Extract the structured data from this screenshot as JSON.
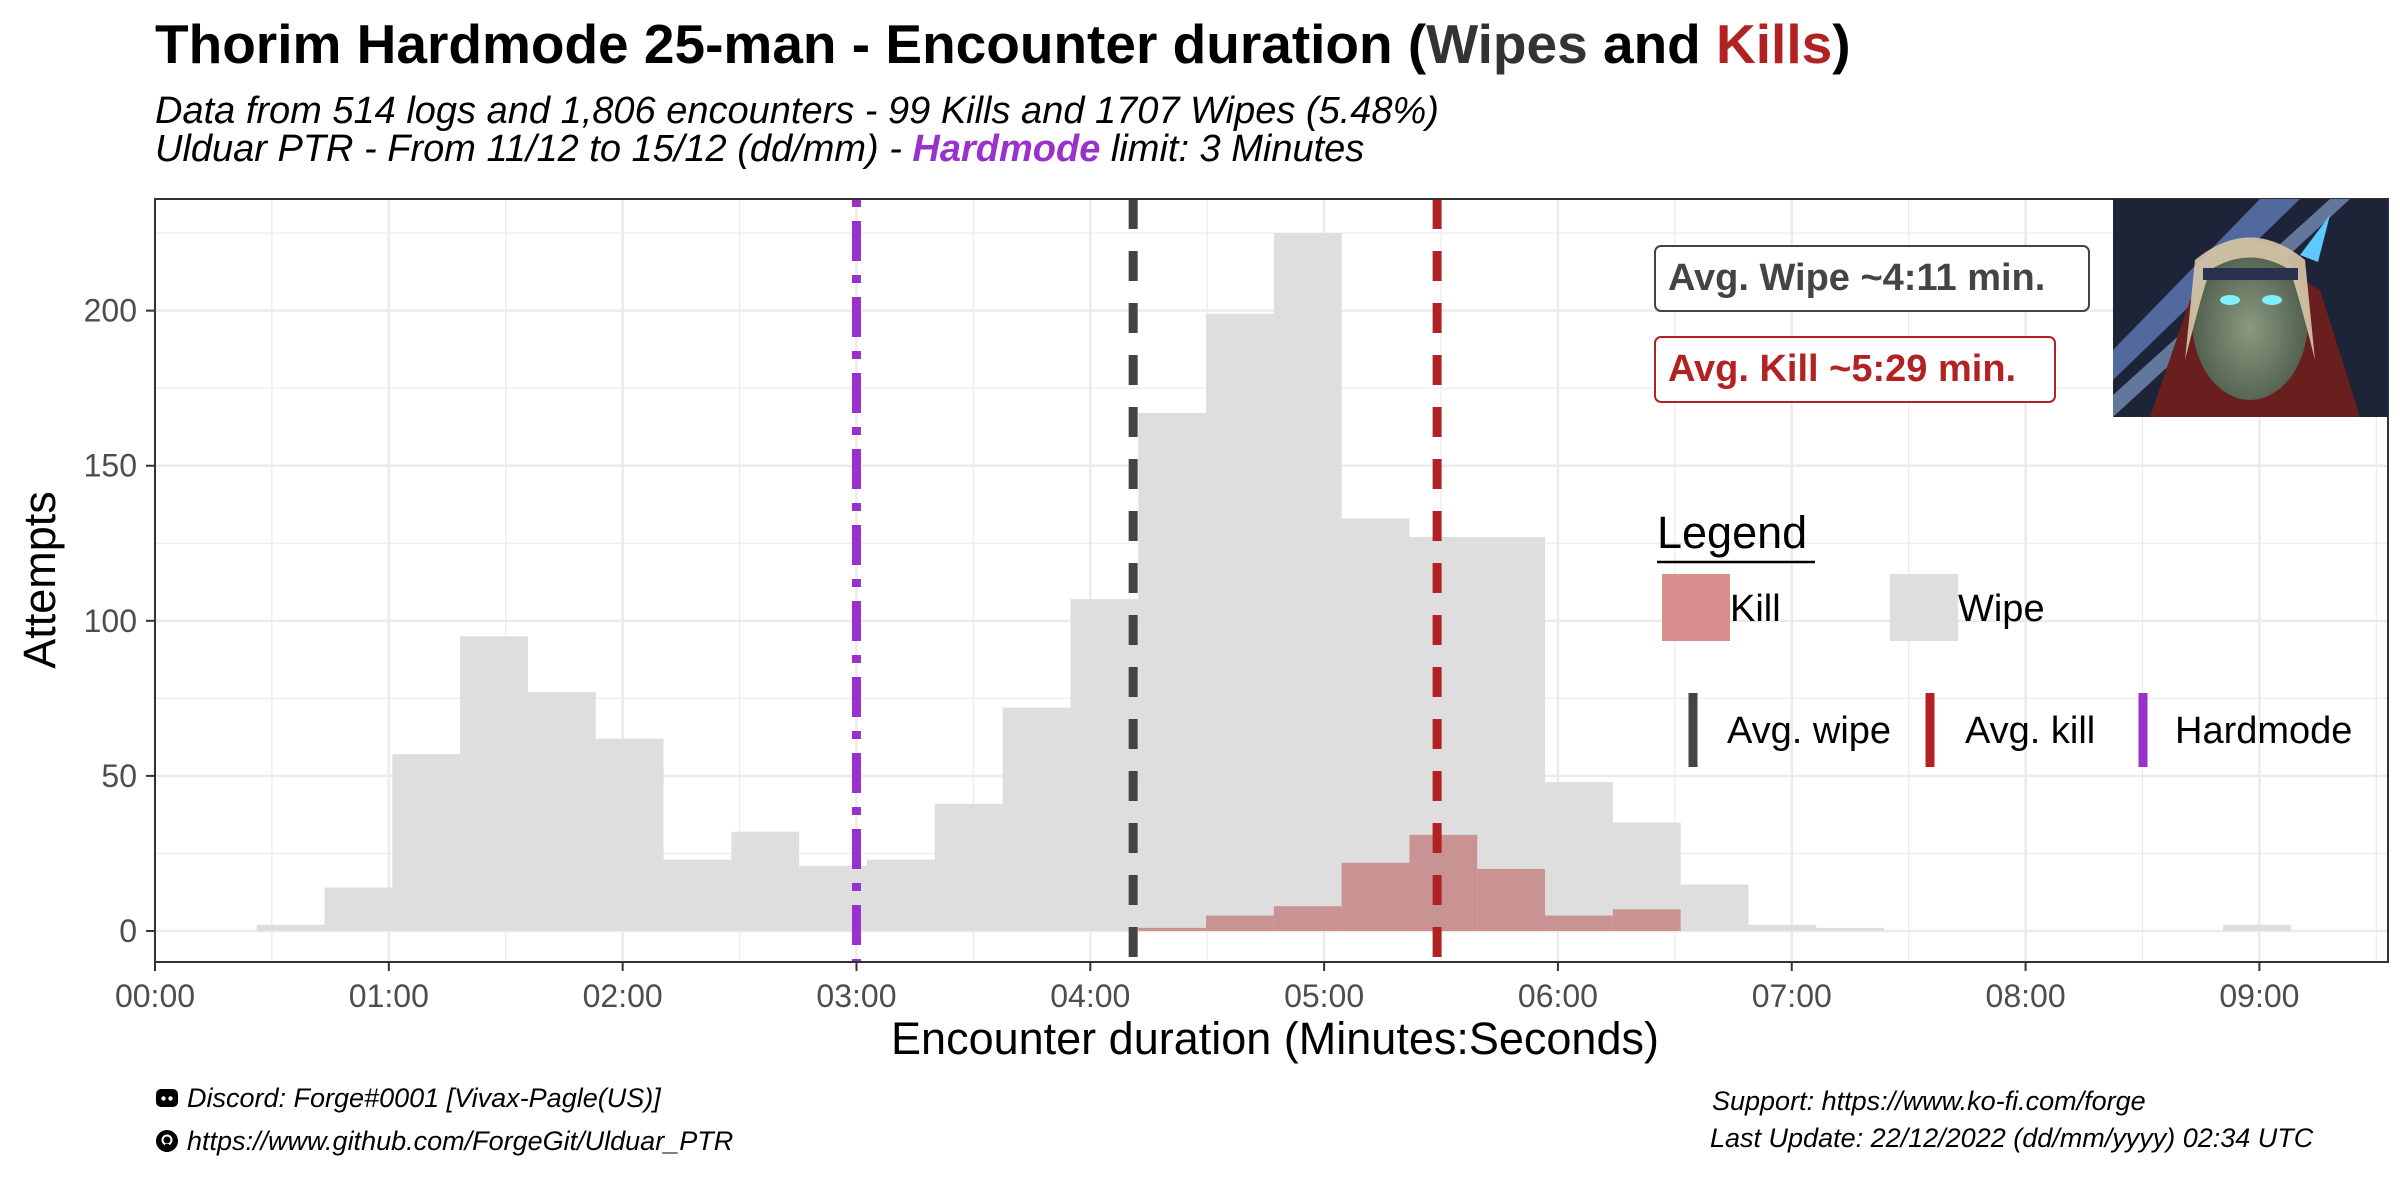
{
  "title": {
    "prefix": "Thorim Hardmode 25-man - Encounter duration (",
    "wipes_word": "Wipes",
    "and_word": " and ",
    "kills_word": "Kills",
    "suffix": ")"
  },
  "subtitle": {
    "line1": "Data from 514 logs and 1,806 encounters - 99 Kills and 1707 Wipes (5.48%)",
    "line2_prefix": "Ulduar PTR - From 11/12 to 15/12 (dd/mm) - ",
    "line2_hardmode": "Hardmode",
    "line2_suffix": " limit: 3 Minutes"
  },
  "annotations": {
    "avg_wipe": "Avg. Wipe ~4:11 min.",
    "avg_kill": "Avg. Kill ~5:29 min."
  },
  "legend": {
    "title": "Legend",
    "kill": "Kill",
    "wipe": "Wipe",
    "avg_wipe": "Avg. wipe",
    "avg_kill": "Avg. kill",
    "hardmode": "Hardmode"
  },
  "colors": {
    "wipe_fill": "#dedede",
    "kill_fill": "#c48080",
    "kill_legend": "#d98e8e",
    "avg_wipe_line": "#444444",
    "avg_kill_line": "#b22222",
    "hardmode_line": "#9932cc",
    "grid": "#ebebeb"
  },
  "footer": {
    "discord": "Discord: Forge#0001 [Vivax-Pagle(US)]",
    "github": "https://www.github.com/ForgeGit/Ulduar_PTR",
    "support": "Support: https://www.ko-fi.com/forge",
    "last_update": "Last Update: 22/12/2022 (dd/mm/yyyy) 02:34 UTC"
  },
  "icons": [
    "discord-icon",
    "github-icon",
    "boss-portrait"
  ],
  "chart_data": {
    "type": "bar",
    "xlabel": "Encounter duration (Minutes:Seconds)",
    "ylabel": "Attempts",
    "xlim_seconds": [
      0,
      573
    ],
    "ylim": [
      -10,
      236
    ],
    "x_ticks": [
      "00:00",
      "01:00",
      "02:00",
      "03:00",
      "04:00",
      "05:00",
      "06:00",
      "07:00",
      "08:00",
      "09:00"
    ],
    "y_ticks": [
      0,
      50,
      100,
      150,
      200
    ],
    "bin_width_seconds": 17.4,
    "wipe_bins": [
      {
        "x_start": 26.1,
        "count": 2
      },
      {
        "x_start": 43.5,
        "count": 14
      },
      {
        "x_start": 60.9,
        "count": 57
      },
      {
        "x_start": 78.3,
        "count": 95
      },
      {
        "x_start": 95.7,
        "count": 77
      },
      {
        "x_start": 113.1,
        "count": 62
      },
      {
        "x_start": 130.5,
        "count": 23
      },
      {
        "x_start": 147.9,
        "count": 32
      },
      {
        "x_start": 165.3,
        "count": 21
      },
      {
        "x_start": 182.7,
        "count": 23
      },
      {
        "x_start": 200.1,
        "count": 41
      },
      {
        "x_start": 217.5,
        "count": 72
      },
      {
        "x_start": 234.9,
        "count": 107
      },
      {
        "x_start": 252.3,
        "count": 167
      },
      {
        "x_start": 269.7,
        "count": 199
      },
      {
        "x_start": 287.1,
        "count": 225
      },
      {
        "x_start": 304.5,
        "count": 133
      },
      {
        "x_start": 321.9,
        "count": 127
      },
      {
        "x_start": 339.3,
        "count": 127
      },
      {
        "x_start": 356.7,
        "count": 48
      },
      {
        "x_start": 374.1,
        "count": 35
      },
      {
        "x_start": 391.5,
        "count": 15
      },
      {
        "x_start": 408.9,
        "count": 2
      },
      {
        "x_start": 426.3,
        "count": 1
      },
      {
        "x_start": 530.7,
        "count": 2
      }
    ],
    "kill_bins": [
      {
        "x_start": 252.3,
        "count": 1
      },
      {
        "x_start": 269.7,
        "count": 5
      },
      {
        "x_start": 287.1,
        "count": 8
      },
      {
        "x_start": 304.5,
        "count": 22
      },
      {
        "x_start": 321.9,
        "count": 31
      },
      {
        "x_start": 339.3,
        "count": 20
      },
      {
        "x_start": 356.7,
        "count": 5
      },
      {
        "x_start": 374.1,
        "count": 7
      }
    ],
    "vlines": [
      {
        "name": "Avg. wipe",
        "x_seconds": 251,
        "style": "dashed"
      },
      {
        "name": "Avg. kill",
        "x_seconds": 329,
        "style": "dashed"
      },
      {
        "name": "Hardmode",
        "x_seconds": 180,
        "style": "dotdash"
      }
    ],
    "grid": true,
    "legend_placement": "right"
  }
}
